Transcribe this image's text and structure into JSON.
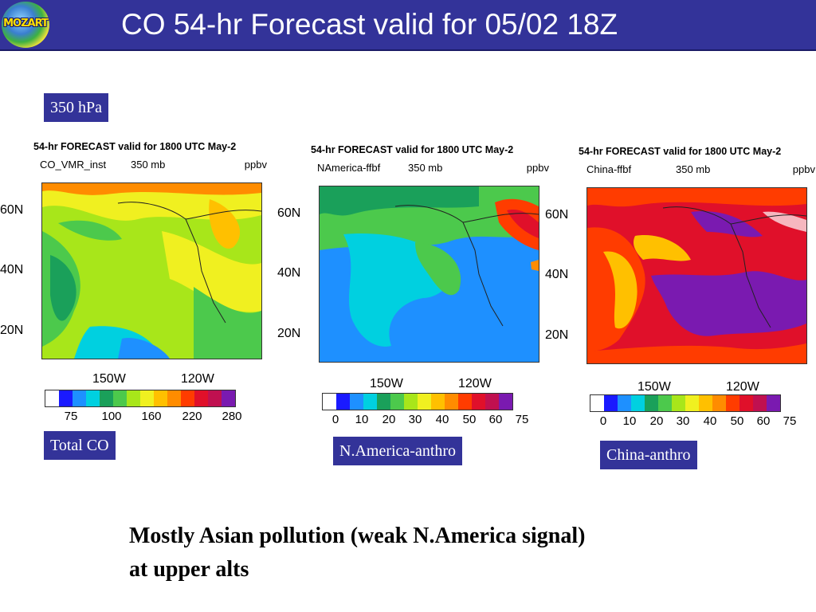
{
  "header": {
    "title": "CO 54-hr Forecast valid for 05/02 18Z",
    "logo_text": "MOZART"
  },
  "pressure_label": "350 hPa",
  "panels": [
    {
      "title": "54-hr FORECAST valid for 1800 UTC May-2",
      "variable": "CO_VMR_inst",
      "level": "350 mb",
      "unit": "ppbv",
      "lat_labels": [
        "60N",
        "40N",
        "20N"
      ],
      "lon_labels": [
        "150W",
        "120W"
      ],
      "colorbar_labels": [
        "75",
        "100",
        "160",
        "220",
        "280"
      ],
      "caption": "Total CO"
    },
    {
      "title": "54-hr FORECAST valid for 1800 UTC May-2",
      "variable": "NAmerica-ffbf",
      "level": "350 mb",
      "unit": "ppbv",
      "lat_labels": [
        "60N",
        "40N",
        "20N"
      ],
      "lon_labels": [
        "150W",
        "120W"
      ],
      "colorbar_labels": [
        "0",
        "10",
        "20",
        "30",
        "40",
        "50",
        "60",
        "75"
      ],
      "caption": "N.America-anthro"
    },
    {
      "title": "54-hr FORECAST valid for 1800 UTC May-2",
      "variable": "China-ffbf",
      "level": "350 mb",
      "unit": "ppbv",
      "lat_labels": [
        "60N",
        "40N",
        "20N"
      ],
      "lon_labels": [
        "150W",
        "120W"
      ],
      "colorbar_labels": [
        "0",
        "10",
        "20",
        "30",
        "40",
        "50",
        "60",
        "75"
      ],
      "caption": "China-anthro"
    }
  ],
  "colorbar_colors": [
    "#ffffff",
    "#1a1aff",
    "#1e90ff",
    "#00d0e0",
    "#1aa05a",
    "#4cc94c",
    "#a8e61a",
    "#f0f020",
    "#ffc000",
    "#ff8c00",
    "#ff3c00",
    "#e0102a",
    "#c01050",
    "#7a1ab0"
  ],
  "caption": {
    "line1": "Mostly Asian pollution (weak N.America signal)",
    "line2": "at upper alts"
  }
}
